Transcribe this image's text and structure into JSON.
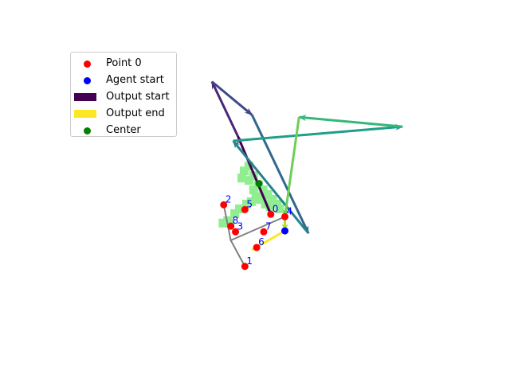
{
  "chart_data": {
    "type": "scatter",
    "title": "",
    "xlabel": "",
    "ylabel": "",
    "axes_visible": false,
    "xlim": [
      -4.2,
      4.2
    ],
    "ylim": [
      -3.1,
      3.1
    ],
    "legend": {
      "placement": "upper-left",
      "entries": [
        {
          "label": "Point 0",
          "kind": "dot",
          "color": "#ff0000"
        },
        {
          "label": "Agent start",
          "kind": "dot",
          "color": "#0000ff"
        },
        {
          "label": "Output start",
          "kind": "bar",
          "color": "#440154"
        },
        {
          "label": "Output end",
          "kind": "bar",
          "color": "#fde725"
        },
        {
          "label": "Center",
          "kind": "dot",
          "color": "#008000"
        }
      ]
    },
    "points": [
      {
        "label": "0",
        "x": 0.2,
        "y": -0.45
      },
      {
        "label": "1",
        "x": -0.35,
        "y": -1.55
      },
      {
        "label": "2",
        "x": -0.8,
        "y": -0.25
      },
      {
        "label": "3",
        "x": -0.55,
        "y": -0.82
      },
      {
        "label": "4",
        "x": 0.5,
        "y": -0.5
      },
      {
        "label": "5",
        "x": -0.35,
        "y": -0.35
      },
      {
        "label": "6",
        "x": -0.1,
        "y": -1.15
      },
      {
        "label": "7",
        "x": 0.05,
        "y": -0.82
      },
      {
        "label": "8",
        "x": -0.65,
        "y": -0.7
      }
    ],
    "agent_start": {
      "x": 0.5,
      "y": -0.8
    },
    "center": {
      "x": -0.05,
      "y": 0.2
    },
    "region_cells": [
      [
        -0.2,
        0.1
      ],
      [
        -0.1,
        0.2
      ],
      [
        0.0,
        0.1
      ],
      [
        -0.3,
        0.3
      ],
      [
        -0.2,
        0.4
      ],
      [
        -0.4,
        0.5
      ],
      [
        -0.3,
        0.6
      ],
      [
        0.1,
        0.0
      ],
      [
        0.2,
        -0.1
      ],
      [
        0.3,
        -0.2
      ],
      [
        0.15,
        -0.25
      ],
      [
        0.35,
        -0.3
      ],
      [
        0.05,
        -0.2
      ],
      [
        -0.15,
        -0.05
      ],
      [
        -0.25,
        -0.15
      ],
      [
        -0.35,
        -0.2
      ],
      [
        -0.5,
        -0.3
      ],
      [
        -0.6,
        -0.4
      ],
      [
        -0.75,
        -0.55
      ],
      [
        -0.85,
        -0.6
      ],
      [
        -0.7,
        -0.6
      ],
      [
        -0.1,
        -0.1
      ],
      [
        0.0,
        -0.05
      ],
      [
        -0.45,
        0.35
      ]
    ],
    "gray_path": [
      [
        0.5,
        -0.5
      ],
      [
        -0.65,
        -1.0
      ],
      [
        -0.8,
        -0.25
      ],
      [
        -0.65,
        -1.0
      ],
      [
        -0.35,
        -1.55
      ]
    ],
    "output_path": [
      [
        0.2,
        -0.45
      ],
      [
        -0.5,
        1.2
      ],
      [
        -1.05,
        2.35
      ],
      [
        -0.2,
        1.65
      ],
      [
        1.0,
        -0.85
      ],
      [
        -0.6,
        1.1
      ],
      [
        3.0,
        1.4
      ],
      [
        0.8,
        1.6
      ],
      [
        0.5,
        -0.5
      ],
      [
        0.5,
        -0.8
      ],
      [
        -0.2,
        -1.2
      ]
    ]
  }
}
